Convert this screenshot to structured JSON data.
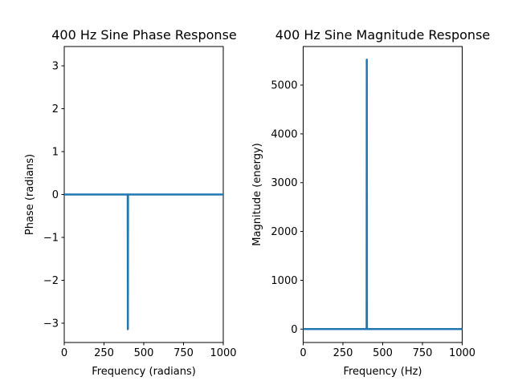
{
  "chart_data": [
    {
      "type": "line",
      "title": "400 Hz Sine Phase Response",
      "xlabel": "Frequency (radians)",
      "ylabel": "Phase (radians)",
      "xlim": [
        0,
        1000
      ],
      "ylim": [
        -3.45,
        3.45
      ],
      "xticks": [
        0,
        250,
        500,
        750,
        1000
      ],
      "yticks": [
        -3,
        -2,
        -1,
        0,
        1,
        2,
        3
      ],
      "grid": false,
      "series": [
        {
          "color": "#1f77b4",
          "x": [
            0,
            399,
            400,
            401,
            1000
          ],
          "y": [
            0,
            0,
            -3.14,
            0,
            0
          ]
        }
      ]
    },
    {
      "type": "line",
      "title": "400 Hz Sine Magnitude Response",
      "xlabel": "Frequency (Hz)",
      "ylabel": "Magnitude (energy)",
      "xlim": [
        0,
        1000
      ],
      "ylim": [
        -275,
        5790
      ],
      "xticks": [
        0,
        250,
        500,
        750,
        1000
      ],
      "yticks": [
        0,
        1000,
        2000,
        3000,
        4000,
        5000
      ],
      "grid": false,
      "series": [
        {
          "color": "#1f77b4",
          "x": [
            0,
            399,
            400,
            401,
            1000
          ],
          "y": [
            0,
            0,
            5520,
            0,
            0
          ]
        }
      ]
    }
  ]
}
